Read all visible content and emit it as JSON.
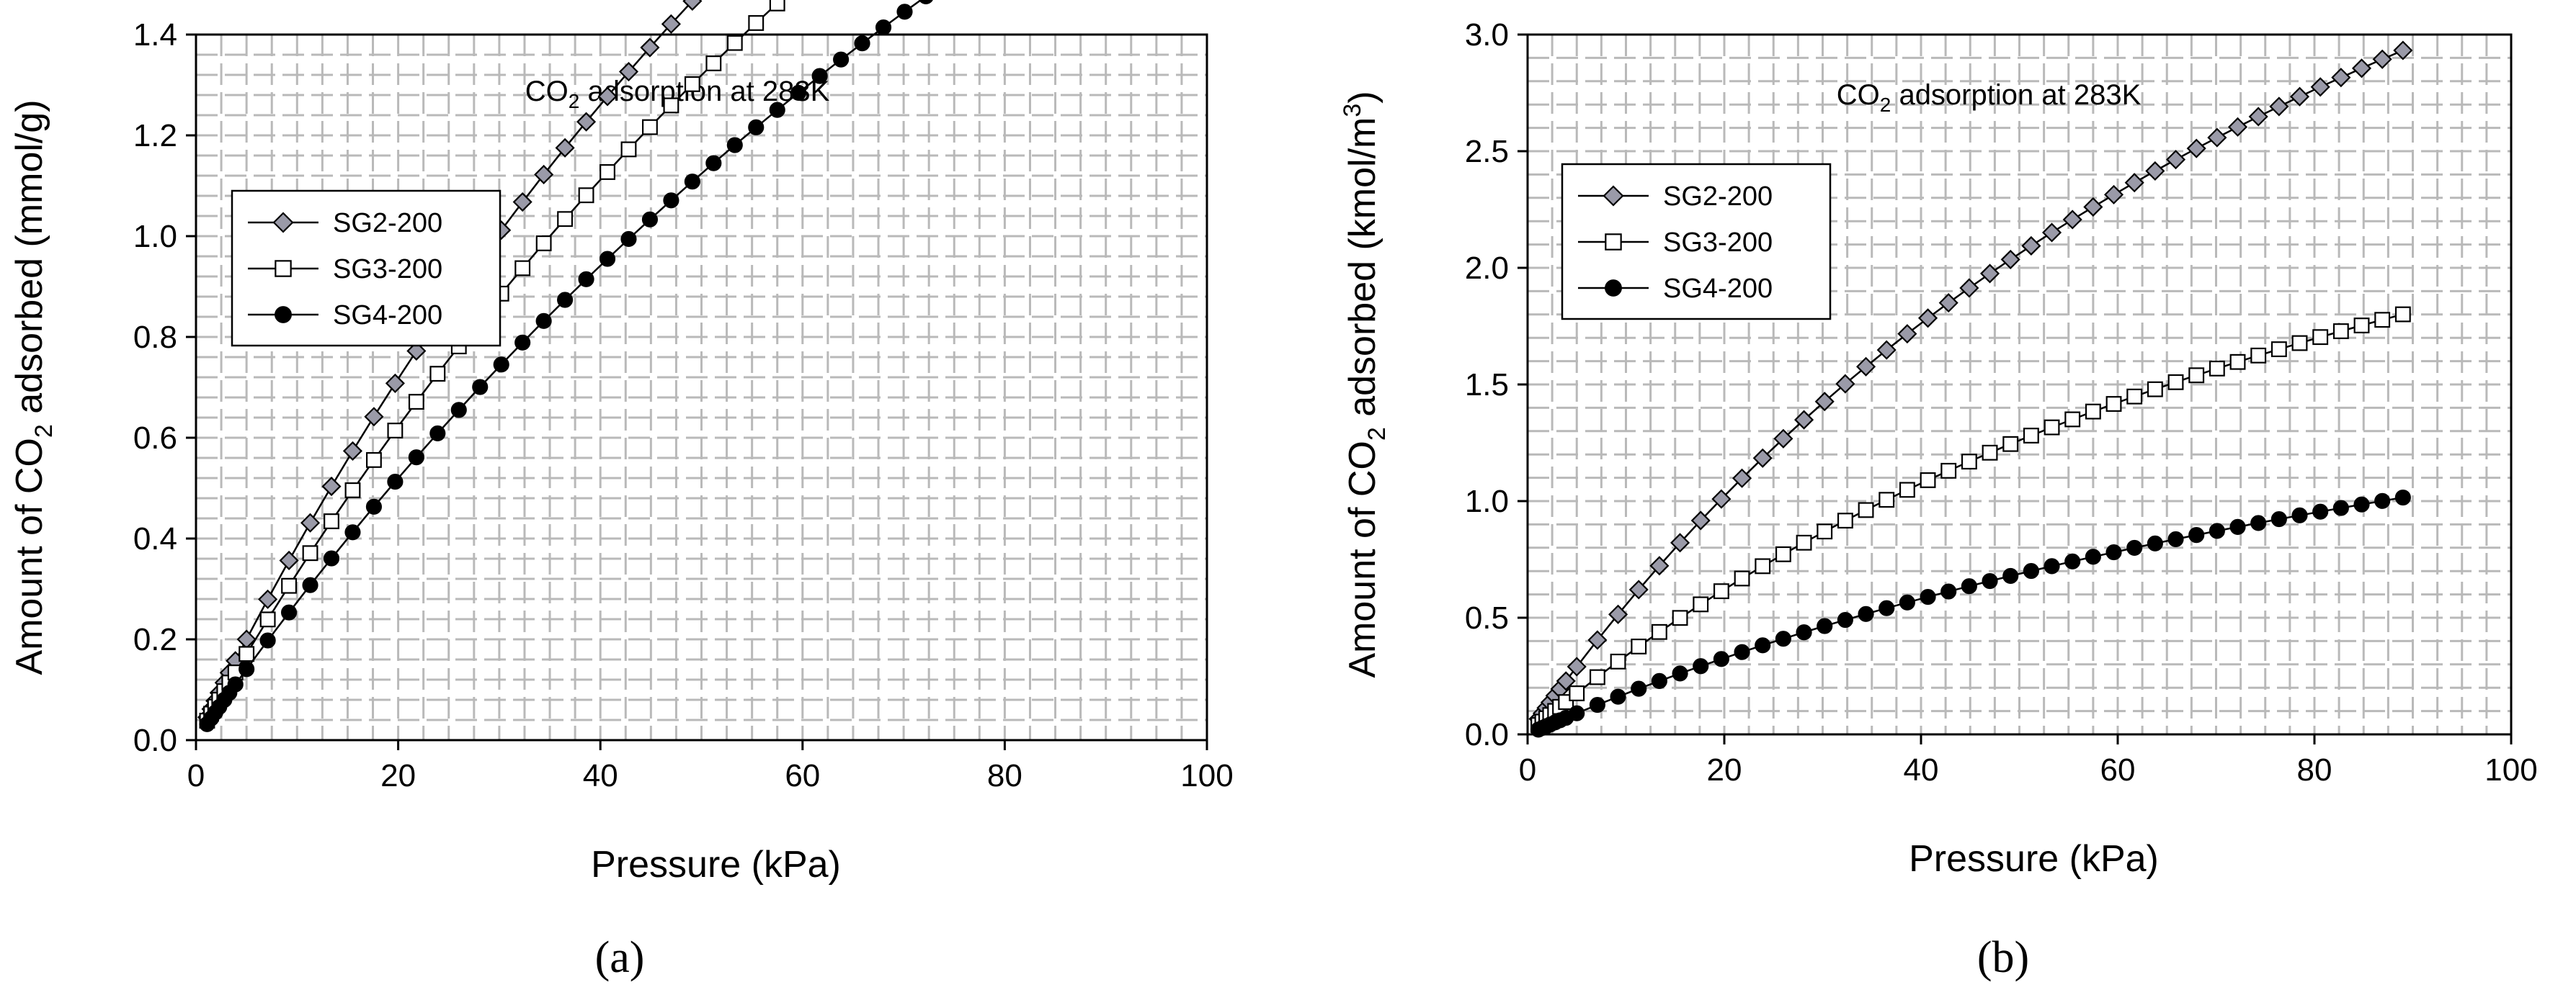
{
  "chart_data": [
    {
      "type": "scatter",
      "panel_label": "(a)",
      "title": "CO2 adsorption at 283K",
      "title_main": "CO",
      "title_sub": "2",
      "title_rest": " adsorption at 283K",
      "xlabel": "Pressure (kPa)",
      "ylabel": "Amount of CO2 adsorbed (mmol/g)",
      "ylabel_pre": "Amount of CO",
      "ylabel_sub": "2",
      "ylabel_post": " adsorbed (mmol/g)",
      "xlim": [
        0,
        100
      ],
      "ylim": [
        0,
        1.4
      ],
      "xticks": [
        "0",
        "20",
        "40",
        "60",
        "80",
        "100"
      ],
      "yticks": [
        "0.0",
        "0.2",
        "0.4",
        "0.6",
        "0.8",
        "1.0",
        "1.2",
        "1.4"
      ],
      "grid": true,
      "legend_position": "left-middle",
      "series": [
        {
          "name": "SG2-200",
          "marker": "diamond",
          "fill": "#9a9aa8",
          "amax": 5.2,
          "b": 0.008
        },
        {
          "name": "SG3-200",
          "marker": "square-open",
          "fill": "#ffffff",
          "amax": 5.2,
          "b": 0.0068
        },
        {
          "name": "SG4-200",
          "marker": "circle",
          "fill": "#000000",
          "amax": 5.0,
          "b": 0.0058
        }
      ]
    },
    {
      "type": "scatter",
      "panel_label": "(b)",
      "title": "CO2 adsorption at 283K",
      "title_main": "CO",
      "title_sub": "2",
      "title_rest": " adsorption at 283K",
      "xlabel": "Pressure (kPa)",
      "ylabel": "Amount of CO2 adsorbed (kmol/m3)",
      "ylabel_pre": "Amount of CO",
      "ylabel_sub": "2",
      "ylabel_post": " adsorbed (kmol/m",
      "ylabel_sup": "3",
      "ylabel_end": ")",
      "xlim": [
        0,
        100
      ],
      "ylim": [
        0,
        3.0
      ],
      "xticks": [
        "0",
        "20",
        "40",
        "60",
        "80",
        "100"
      ],
      "yticks": [
        "0.0",
        "0.5",
        "1.0",
        "1.5",
        "2.0",
        "2.5",
        "3.0"
      ],
      "grid": true,
      "legend_position": "top-left",
      "series": [
        {
          "name": "SG2-200",
          "marker": "diamond",
          "fill": "#9a9aa8",
          "amax": 6.4,
          "b": 0.0095
        },
        {
          "name": "SG3-200",
          "marker": "square-open",
          "fill": "#ffffff",
          "amax": 4.0,
          "b": 0.0092
        },
        {
          "name": "SG4-200",
          "marker": "circle",
          "fill": "#000000",
          "amax": 2.6,
          "b": 0.0072
        }
      ]
    }
  ]
}
